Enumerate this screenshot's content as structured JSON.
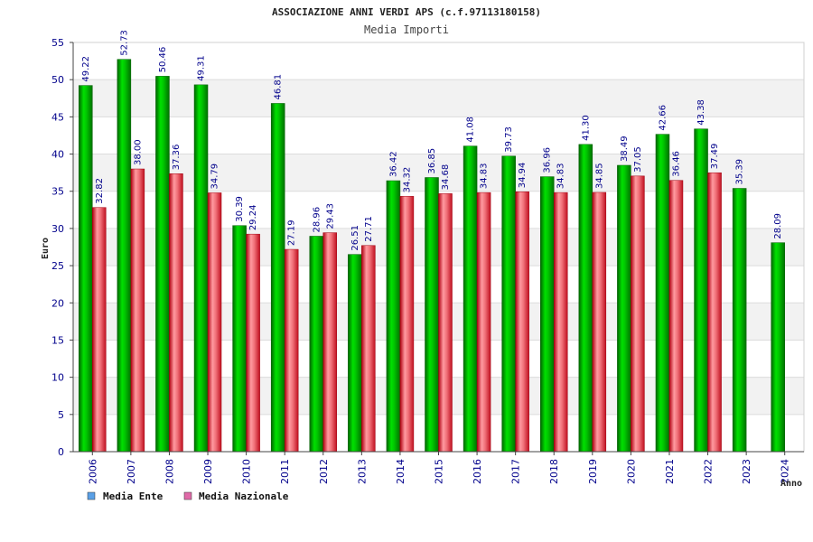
{
  "chart_data": {
    "type": "bar",
    "title": "ASSOCIAZIONE ANNI VERDI APS (c.f.97113180158)",
    "subtitle": "Media Importi",
    "ylabel": "Euro",
    "xlabel": "Anno",
    "ylim": [
      0,
      55
    ],
    "yticks": [
      0,
      5,
      10,
      15,
      20,
      25,
      30,
      35,
      40,
      45,
      50,
      55
    ],
    "grid": true,
    "legend_position": "bottom-left",
    "categories": [
      "2006",
      "2007",
      "2008",
      "2009",
      "2010",
      "2011",
      "2012",
      "2013",
      "2014",
      "2015",
      "2016",
      "2017",
      "2018",
      "2019",
      "2020",
      "2021",
      "2022",
      "2023",
      "2024"
    ],
    "series": [
      {
        "name": "Media Ente",
        "color": "#00b400",
        "legend_color": "#5aa0e6",
        "values": [
          49.22,
          52.73,
          50.46,
          49.31,
          30.39,
          46.81,
          28.96,
          26.51,
          36.42,
          36.85,
          41.08,
          39.73,
          36.96,
          41.3,
          38.49,
          42.66,
          43.38,
          35.39,
          28.09
        ],
        "labels": [
          "49.22",
          "52.73",
          "50.46",
          "49.31",
          "30.39",
          "46.81",
          "28.96",
          "26.51",
          "36.42",
          "36.85",
          "41.08",
          "39.73",
          "36.96",
          "41.30",
          "38.49",
          "42.66",
          "43.38",
          "35.39",
          "28.09"
        ]
      },
      {
        "name": "Media Nazionale",
        "color": "#e8303a",
        "legend_color": "#e06aa8",
        "values": [
          32.82,
          38.0,
          37.36,
          34.79,
          29.24,
          27.19,
          29.43,
          27.71,
          34.32,
          34.68,
          34.83,
          34.94,
          34.83,
          34.85,
          37.05,
          36.46,
          37.49,
          null,
          null
        ],
        "labels": [
          "32.82",
          "38.00",
          "37.36",
          "34.79",
          "29.24",
          "27.19",
          "29.43",
          "27.71",
          "34.32",
          "34.68",
          "34.83",
          "34.94",
          "34.83",
          "34.85",
          "37.05",
          "36.46",
          "37.49",
          null,
          null
        ]
      }
    ]
  }
}
